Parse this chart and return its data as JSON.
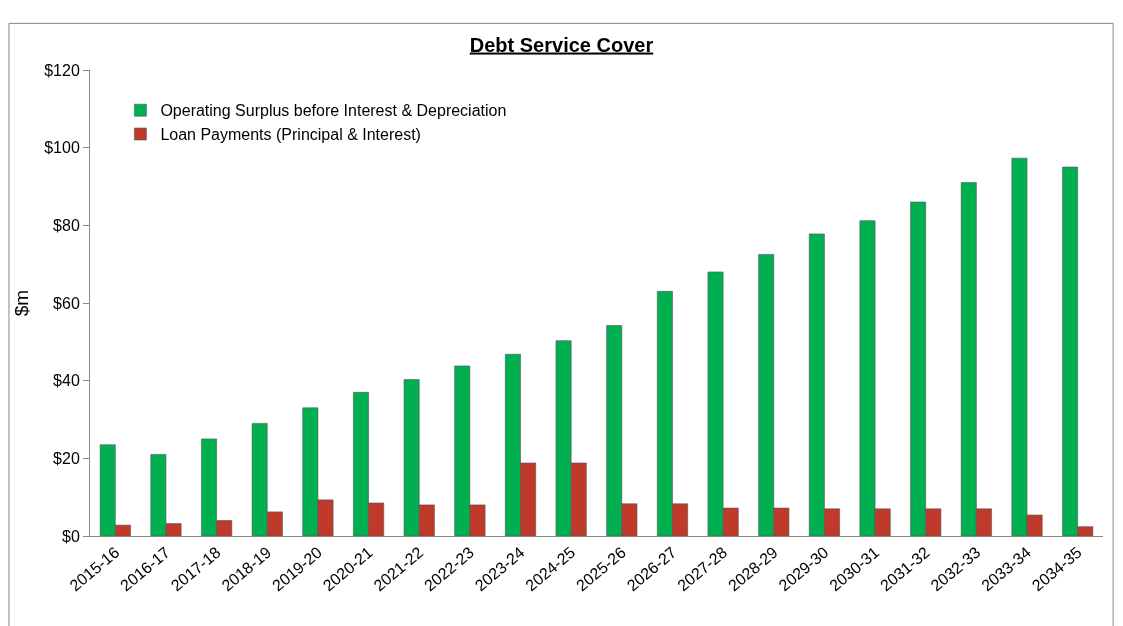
{
  "chart_data": {
    "type": "bar",
    "title": "Debt Service Cover",
    "ylabel": "$m",
    "categories": [
      "2015-16",
      "2016-17",
      "2017-18",
      "2018-19",
      "2019-20",
      "2020-21",
      "2021-22",
      "2022-23",
      "2023-24",
      "2024-25",
      "2025-26",
      "2026-27",
      "2027-28",
      "2028-29",
      "2029-30",
      "2030-31",
      "2031-32",
      "2032-33",
      "2033-34",
      "2034-35"
    ],
    "series": [
      {
        "name": "Operating Surplus before Interest & Depreciation",
        "color": "#00b050",
        "values": [
          23.5,
          21,
          25,
          29,
          33,
          37,
          40.3,
          43.8,
          46.8,
          50.3,
          54.2,
          63,
          68,
          72.5,
          77.8,
          81.2,
          86,
          91,
          97.3,
          95
        ]
      },
      {
        "name": "Loan Payments (Principal & Interest)",
        "color": "#c0392b",
        "values": [
          2.8,
          3.2,
          4,
          6.2,
          9.3,
          8.5,
          8,
          8,
          18.8,
          18.8,
          8.3,
          8.3,
          7.2,
          7.2,
          7,
          7,
          7,
          7,
          5.4,
          2.4
        ]
      }
    ],
    "ylim": [
      0,
      120
    ],
    "yticks": [
      {
        "value": 0,
        "label": "$0"
      },
      {
        "value": 20,
        "label": "$20"
      },
      {
        "value": 40,
        "label": "$40"
      },
      {
        "value": 60,
        "label": "$60"
      },
      {
        "value": 80,
        "label": "$80"
      },
      {
        "value": 100,
        "label": "$100"
      },
      {
        "value": 120,
        "label": "$120"
      }
    ],
    "grid": false,
    "legend": "top left"
  }
}
